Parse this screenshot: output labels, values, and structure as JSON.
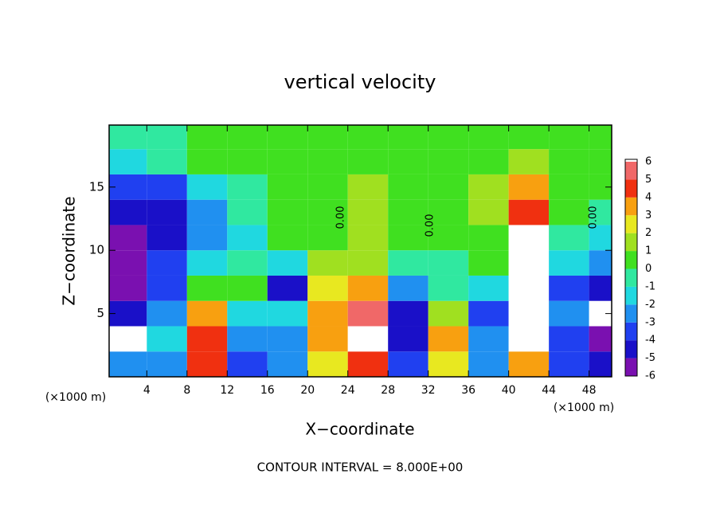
{
  "chart_data": {
    "type": "contour",
    "title": "vertical velocity",
    "x_label": "X−coordinate",
    "y_label": "Z−coordinate",
    "x_unit": "(×1000 m)",
    "x_unit_right": "(×1000 m)",
    "footer": "CONTOUR INTERVAL = 8.000E+00",
    "contour_labels": [
      "0.00",
      "0.00",
      "0.00"
    ],
    "xlim": [
      0.25,
      50.25
    ],
    "ylim": [
      0,
      19.9
    ],
    "xticks": [
      4,
      8,
      12,
      16,
      20,
      24,
      28,
      32,
      36,
      40,
      44,
      48
    ],
    "yticks": [
      5,
      10,
      15
    ],
    "x": [
      2,
      6,
      10,
      14,
      18,
      22,
      26,
      30,
      34,
      38,
      42,
      46,
      50
    ],
    "z": [
      1,
      3,
      5,
      7,
      9,
      11,
      13,
      15,
      17,
      19
    ],
    "values": [
      [
        -2,
        -2,
        5,
        -3,
        -2,
        3,
        5,
        -3,
        3,
        -2,
        4,
        -3,
        -4
      ],
      [
        7,
        -1,
        5,
        -2,
        -2,
        4,
        7,
        -4,
        4,
        -2,
        7,
        -3,
        -5
      ],
      [
        -4,
        -2,
        4,
        -1,
        -1,
        4,
        6,
        -4,
        2,
        -3,
        7,
        -2,
        7
      ],
      [
        -5,
        -3,
        1,
        1,
        -4,
        3,
        4,
        -2,
        0,
        -1,
        7,
        -3,
        -4
      ],
      [
        -6,
        -3,
        -1,
        0,
        -1,
        1.5,
        2,
        -0.5,
        -0.5,
        0.5,
        7,
        -1,
        -2
      ],
      [
        -5,
        -4,
        -2,
        -1,
        0.5,
        1,
        1.5,
        1,
        0.5,
        1,
        7,
        0,
        -1
      ],
      [
        -4,
        -4,
        -2,
        -0.5,
        0.5,
        1,
        1.5,
        0.5,
        0.5,
        1.5,
        5,
        0.5,
        -0.5
      ],
      [
        -3,
        -3,
        -1,
        0,
        0.5,
        1,
        1.5,
        0.5,
        0.5,
        2,
        4,
        1,
        0.5
      ],
      [
        -1,
        -0.5,
        0.5,
        0.5,
        0.5,
        1,
        1,
        1,
        0.5,
        1,
        2,
        0.5,
        0.5
      ],
      [
        0,
        0,
        0.5,
        0.5,
        0.5,
        1,
        1,
        0.5,
        0.5,
        0.5,
        0.5,
        0.5,
        0.5
      ]
    ],
    "levels": [
      -6,
      -5,
      -4,
      -3,
      -2,
      -1,
      0,
      1,
      2,
      3,
      4,
      5,
      6
    ],
    "colors": [
      "#7a10b0",
      "#1a10c8",
      "#2040f0",
      "#2090f0",
      "#20d8e0",
      "#30e8a0",
      "#40e020",
      "#a0e020",
      "#e8e820",
      "#f8a010",
      "#f03010",
      "#f06868"
    ],
    "over_color": "#ffffff"
  }
}
